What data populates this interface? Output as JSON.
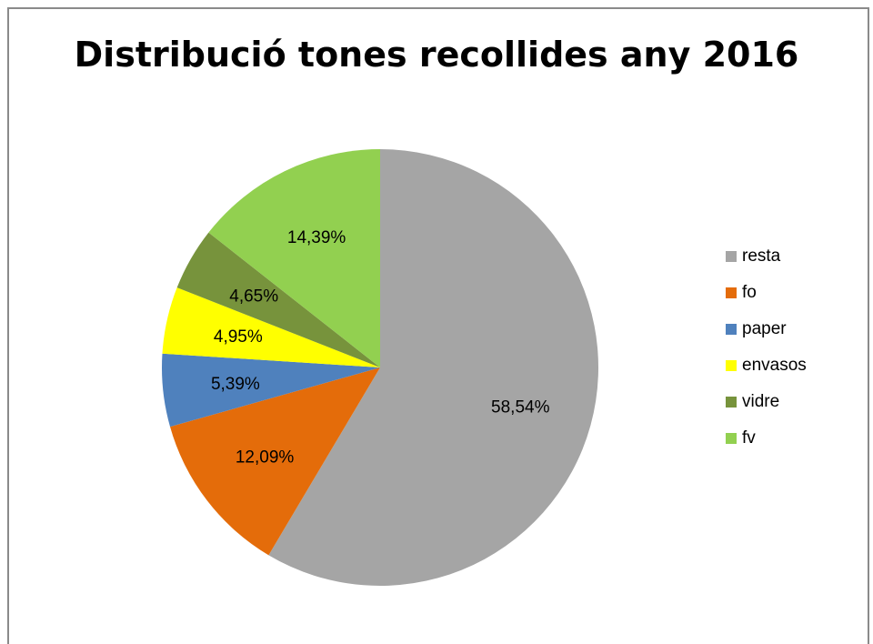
{
  "chart_data": {
    "type": "pie",
    "title": "Distribució tones recollides any 2016",
    "categories": [
      "resta",
      "fo",
      "paper",
      "envasos",
      "vidre",
      "fv"
    ],
    "values": [
      58.54,
      12.09,
      5.39,
      4.95,
      4.65,
      14.39
    ],
    "labels": [
      "58,54%",
      "12,09%",
      "5,39%",
      "4,95%",
      "4,65%",
      "14,39%"
    ],
    "colors": [
      "#a5a5a5",
      "#e46c0a",
      "#4f81bd",
      "#ffff00",
      "#77933c",
      "#92d050"
    ],
    "legend": "right"
  }
}
